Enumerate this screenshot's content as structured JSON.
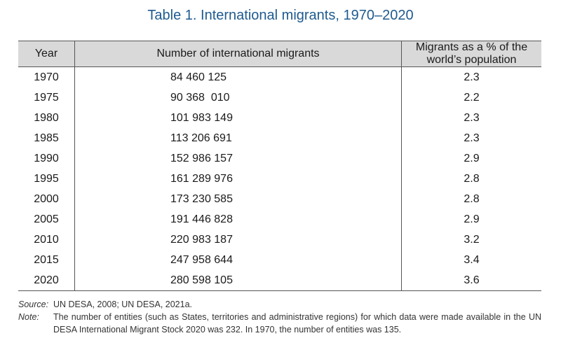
{
  "title": "Table 1. International migrants, 1970–2020",
  "table": {
    "headers": [
      "Year",
      "Number of international migrants",
      "Migrants as a % of the world’s population"
    ],
    "rows": [
      [
        "1970",
        "84 460 125",
        "2.3"
      ],
      [
        "1975",
        "90 368  010",
        "2.2"
      ],
      [
        "1980",
        "101 983 149",
        "2.3"
      ],
      [
        "1985",
        "113 206 691",
        "2.3"
      ],
      [
        "1990",
        "152 986 157",
        "2.9"
      ],
      [
        "1995",
        "161 289 976",
        "2.8"
      ],
      [
        "2000",
        "173 230 585",
        "2.8"
      ],
      [
        "2005",
        "191 446 828",
        "2.9"
      ],
      [
        "2010",
        "220 983 187",
        "3.2"
      ],
      [
        "2015",
        "247 958 644",
        "3.4"
      ],
      [
        "2020",
        "280 598 105",
        "3.6"
      ]
    ]
  },
  "notes": {
    "source_label": "Source:",
    "source_text": "UN DESA, 2008; UN DESA, 2021a.",
    "note_label": "Note:",
    "note_text": "The number of entities (such as States, territories and administrative regions) for which data were made available in the UN DESA International Migrant Stock 2020 was 232. In 1970, the number of entities was 135."
  }
}
